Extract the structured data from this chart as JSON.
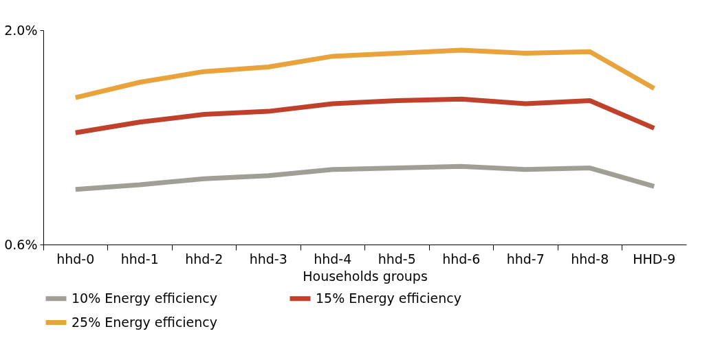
{
  "chart_data": {
    "type": "line",
    "xlabel": "Households groups",
    "categories": [
      "hhd-0",
      "hhd-1",
      "hhd-2",
      "hhd-3",
      "hhd-4",
      "hhd-5",
      "hhd-6",
      "hhd-7",
      "hhd-8",
      "HHD-9"
    ],
    "ylim": [
      0.6,
      2.0
    ],
    "yticks": [
      {
        "value": 0.6,
        "label": "0.6%"
      },
      {
        "value": 2.0,
        "label": "2.0%"
      }
    ],
    "legend": "bottom",
    "line_style": "solid",
    "series": [
      {
        "name": "10% Energy efficiency",
        "color": "#a09f96",
        "values": [
          0.96,
          0.99,
          1.03,
          1.05,
          1.09,
          1.1,
          1.11,
          1.09,
          1.1,
          0.98
        ]
      },
      {
        "name": "15% Energy efficiency",
        "color": "#c0412b",
        "values": [
          1.33,
          1.4,
          1.45,
          1.47,
          1.52,
          1.54,
          1.55,
          1.52,
          1.54,
          1.36
        ]
      },
      {
        "name": "25% Energy efficiency",
        "color": "#e8a33d",
        "values": [
          1.56,
          1.66,
          1.73,
          1.76,
          1.83,
          1.85,
          1.87,
          1.85,
          1.86,
          1.62
        ]
      }
    ]
  }
}
